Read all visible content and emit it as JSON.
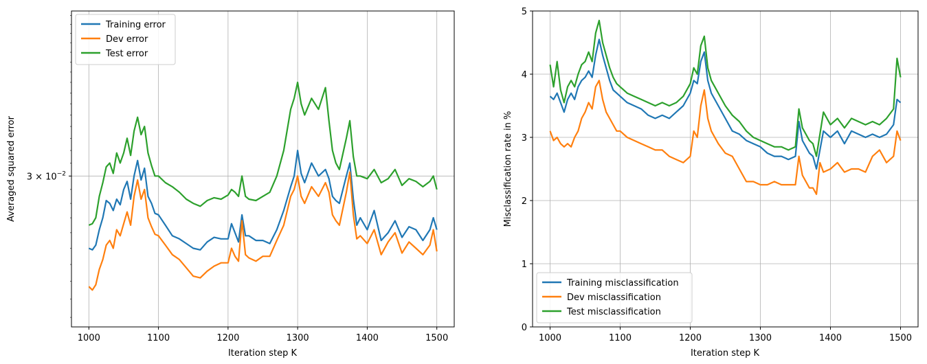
{
  "chart_data": [
    {
      "type": "line",
      "yscale": "log",
      "xlabel": "Iteration step K",
      "ylabel": "Averaged squared error",
      "xlim": [
        975,
        1525
      ],
      "ylim": [
        0.0205,
        0.0455
      ],
      "xticks": [
        1000,
        1100,
        1200,
        1300,
        1400,
        1500
      ],
      "xtick_labels": [
        "1000",
        "1100",
        "1200",
        "1300",
        "1400",
        "1500"
      ],
      "ytick_value": 0.03,
      "ytick_label_base": "3 × 10",
      "ytick_label_exp": "−2",
      "grid": true,
      "legend_position": "upper-left",
      "series": [
        {
          "name": "Training error",
          "color": "#1f77b4",
          "x": [
            1000,
            1005,
            1010,
            1015,
            1020,
            1025,
            1030,
            1035,
            1040,
            1045,
            1050,
            1055,
            1060,
            1065,
            1070,
            1075,
            1080,
            1085,
            1090,
            1095,
            1100,
            1110,
            1120,
            1130,
            1140,
            1150,
            1160,
            1170,
            1180,
            1190,
            1200,
            1205,
            1210,
            1215,
            1220,
            1225,
            1230,
            1240,
            1250,
            1260,
            1270,
            1280,
            1290,
            1295,
            1300,
            1305,
            1310,
            1320,
            1330,
            1340,
            1345,
            1350,
            1355,
            1360,
            1370,
            1375,
            1380,
            1385,
            1390,
            1400,
            1410,
            1420,
            1430,
            1440,
            1450,
            1460,
            1470,
            1480,
            1490,
            1495,
            1500
          ],
          "y": [
            0.025,
            0.0249,
            0.0252,
            0.0262,
            0.027,
            0.0282,
            0.028,
            0.0275,
            0.0283,
            0.0279,
            0.029,
            0.0296,
            0.0283,
            0.03,
            0.0312,
            0.0297,
            0.0306,
            0.0285,
            0.028,
            0.0273,
            0.0272,
            0.0265,
            0.0258,
            0.0256,
            0.0253,
            0.025,
            0.0249,
            0.0254,
            0.0257,
            0.0256,
            0.0256,
            0.0266,
            0.026,
            0.0254,
            0.0272,
            0.0258,
            0.0258,
            0.0255,
            0.0255,
            0.0253,
            0.0262,
            0.0275,
            0.0292,
            0.03,
            0.032,
            0.0302,
            0.0295,
            0.031,
            0.03,
            0.0305,
            0.0298,
            0.0285,
            0.0282,
            0.028,
            0.03,
            0.031,
            0.0283,
            0.0265,
            0.027,
            0.0262,
            0.0275,
            0.0255,
            0.026,
            0.0268,
            0.0257,
            0.0264,
            0.0262,
            0.0255,
            0.0262,
            0.027,
            0.0262
          ]
        },
        {
          "name": "Dev error",
          "color": "#ff7f0e",
          "x": [
            1000,
            1005,
            1010,
            1015,
            1020,
            1025,
            1030,
            1035,
            1040,
            1045,
            1050,
            1055,
            1060,
            1065,
            1070,
            1075,
            1080,
            1085,
            1090,
            1095,
            1100,
            1110,
            1120,
            1130,
            1140,
            1150,
            1160,
            1170,
            1180,
            1190,
            1200,
            1205,
            1210,
            1215,
            1220,
            1225,
            1230,
            1240,
            1250,
            1260,
            1270,
            1280,
            1290,
            1295,
            1300,
            1305,
            1310,
            1320,
            1330,
            1340,
            1345,
            1350,
            1355,
            1360,
            1370,
            1375,
            1380,
            1385,
            1390,
            1400,
            1410,
            1420,
            1430,
            1440,
            1450,
            1460,
            1470,
            1480,
            1490,
            1495,
            1500
          ],
          "y": [
            0.0227,
            0.0225,
            0.0228,
            0.0237,
            0.0243,
            0.0252,
            0.0255,
            0.025,
            0.0262,
            0.0258,
            0.0266,
            0.0274,
            0.0265,
            0.0285,
            0.0297,
            0.0283,
            0.029,
            0.027,
            0.0264,
            0.0259,
            0.0258,
            0.0252,
            0.0246,
            0.0243,
            0.0238,
            0.0233,
            0.0232,
            0.0236,
            0.0239,
            0.0241,
            0.0241,
            0.025,
            0.0245,
            0.0242,
            0.0268,
            0.0246,
            0.0244,
            0.0242,
            0.0245,
            0.0245,
            0.0255,
            0.0265,
            0.0285,
            0.029,
            0.03,
            0.0285,
            0.028,
            0.0292,
            0.0285,
            0.0295,
            0.0288,
            0.0272,
            0.0268,
            0.0265,
            0.0288,
            0.0303,
            0.0272,
            0.0256,
            0.0258,
            0.0253,
            0.0262,
            0.0246,
            0.0254,
            0.026,
            0.0247,
            0.0254,
            0.025,
            0.0246,
            0.0252,
            0.0262,
            0.0248
          ]
        },
        {
          "name": "Test error",
          "color": "#2ca02c",
          "x": [
            1000,
            1005,
            1010,
            1015,
            1020,
            1025,
            1030,
            1035,
            1040,
            1045,
            1050,
            1055,
            1060,
            1065,
            1070,
            1075,
            1080,
            1085,
            1090,
            1095,
            1100,
            1110,
            1120,
            1130,
            1140,
            1150,
            1160,
            1170,
            1180,
            1190,
            1200,
            1205,
            1210,
            1215,
            1220,
            1225,
            1230,
            1240,
            1250,
            1260,
            1270,
            1280,
            1290,
            1295,
            1300,
            1305,
            1310,
            1320,
            1330,
            1340,
            1345,
            1350,
            1355,
            1360,
            1370,
            1375,
            1380,
            1385,
            1390,
            1400,
            1410,
            1420,
            1430,
            1440,
            1450,
            1460,
            1470,
            1480,
            1490,
            1495,
            1500
          ],
          "y": [
            0.0265,
            0.0266,
            0.027,
            0.0285,
            0.0295,
            0.0307,
            0.031,
            0.0302,
            0.0318,
            0.031,
            0.0318,
            0.033,
            0.0316,
            0.0336,
            0.0348,
            0.0333,
            0.034,
            0.0318,
            0.0308,
            0.03,
            0.03,
            0.0295,
            0.0292,
            0.0288,
            0.0283,
            0.028,
            0.0278,
            0.0282,
            0.0284,
            0.0283,
            0.0286,
            0.029,
            0.0288,
            0.0285,
            0.03,
            0.0285,
            0.0283,
            0.0282,
            0.0285,
            0.0288,
            0.03,
            0.032,
            0.0355,
            0.0365,
            0.038,
            0.036,
            0.035,
            0.0365,
            0.0355,
            0.0375,
            0.0345,
            0.032,
            0.031,
            0.0305,
            0.033,
            0.0345,
            0.0315,
            0.03,
            0.03,
            0.0298,
            0.0305,
            0.0295,
            0.0298,
            0.0305,
            0.0293,
            0.0298,
            0.0296,
            0.0292,
            0.0296,
            0.03,
            0.029
          ]
        }
      ]
    },
    {
      "type": "line",
      "xlabel": "Iteration step K",
      "ylabel": "Misclassification rate in %",
      "xlim": [
        975,
        1525
      ],
      "ylim": [
        0,
        5
      ],
      "xticks": [
        1000,
        1100,
        1200,
        1300,
        1400,
        1500
      ],
      "xtick_labels": [
        "1000",
        "1100",
        "1200",
        "1300",
        "1400",
        "1500"
      ],
      "yticks": [
        0,
        1,
        2,
        3,
        4,
        5
      ],
      "ytick_labels": [
        "0",
        "1",
        "2",
        "3",
        "4",
        "5"
      ],
      "grid": true,
      "legend_position": "lower-left",
      "series": [
        {
          "name": "Training misclassification",
          "color": "#1f77b4",
          "x": [
            1000,
            1005,
            1010,
            1015,
            1020,
            1025,
            1030,
            1035,
            1040,
            1045,
            1050,
            1055,
            1060,
            1065,
            1070,
            1075,
            1080,
            1085,
            1090,
            1095,
            1100,
            1110,
            1120,
            1130,
            1140,
            1150,
            1160,
            1170,
            1180,
            1190,
            1200,
            1205,
            1210,
            1215,
            1220,
            1225,
            1230,
            1240,
            1250,
            1260,
            1270,
            1280,
            1290,
            1300,
            1310,
            1320,
            1330,
            1340,
            1350,
            1355,
            1360,
            1370,
            1375,
            1380,
            1385,
            1390,
            1400,
            1410,
            1420,
            1430,
            1440,
            1450,
            1460,
            1470,
            1480,
            1490,
            1495,
            1500
          ],
          "y": [
            3.65,
            3.6,
            3.7,
            3.55,
            3.4,
            3.6,
            3.7,
            3.6,
            3.8,
            3.9,
            3.95,
            4.05,
            3.95,
            4.3,
            4.55,
            4.3,
            4.1,
            3.9,
            3.75,
            3.7,
            3.65,
            3.55,
            3.5,
            3.45,
            3.35,
            3.3,
            3.35,
            3.3,
            3.4,
            3.5,
            3.7,
            3.9,
            3.85,
            4.2,
            4.35,
            3.9,
            3.7,
            3.5,
            3.3,
            3.1,
            3.05,
            2.95,
            2.9,
            2.85,
            2.75,
            2.7,
            2.7,
            2.65,
            2.7,
            3.25,
            2.95,
            2.75,
            2.7,
            2.5,
            2.8,
            3.1,
            3.0,
            3.1,
            2.9,
            3.1,
            3.05,
            3.0,
            3.05,
            3.0,
            3.05,
            3.2,
            3.6,
            3.55
          ]
        },
        {
          "name": "Dev misclassification",
          "color": "#ff7f0e",
          "x": [
            1000,
            1005,
            1010,
            1015,
            1020,
            1025,
            1030,
            1035,
            1040,
            1045,
            1050,
            1055,
            1060,
            1065,
            1070,
            1075,
            1080,
            1085,
            1090,
            1095,
            1100,
            1110,
            1120,
            1130,
            1140,
            1150,
            1160,
            1170,
            1180,
            1190,
            1200,
            1205,
            1210,
            1215,
            1220,
            1225,
            1230,
            1240,
            1250,
            1260,
            1270,
            1280,
            1290,
            1300,
            1310,
            1320,
            1330,
            1340,
            1350,
            1355,
            1360,
            1370,
            1375,
            1380,
            1385,
            1390,
            1400,
            1410,
            1420,
            1430,
            1440,
            1450,
            1460,
            1470,
            1480,
            1490,
            1495,
            1500
          ],
          "y": [
            3.1,
            2.95,
            3.0,
            2.9,
            2.85,
            2.9,
            2.85,
            3.0,
            3.1,
            3.3,
            3.4,
            3.55,
            3.45,
            3.8,
            3.9,
            3.6,
            3.4,
            3.3,
            3.2,
            3.1,
            3.1,
            3.0,
            2.95,
            2.9,
            2.85,
            2.8,
            2.8,
            2.7,
            2.65,
            2.6,
            2.7,
            3.1,
            3.0,
            3.5,
            3.75,
            3.3,
            3.1,
            2.9,
            2.75,
            2.7,
            2.5,
            2.3,
            2.3,
            2.25,
            2.25,
            2.3,
            2.25,
            2.25,
            2.25,
            2.7,
            2.4,
            2.2,
            2.2,
            2.1,
            2.6,
            2.45,
            2.5,
            2.6,
            2.45,
            2.5,
            2.5,
            2.45,
            2.7,
            2.8,
            2.6,
            2.7,
            3.1,
            2.95
          ]
        },
        {
          "name": "Test misclassification",
          "color": "#2ca02c",
          "x": [
            1000,
            1005,
            1010,
            1015,
            1020,
            1025,
            1030,
            1035,
            1040,
            1045,
            1050,
            1055,
            1060,
            1065,
            1070,
            1075,
            1080,
            1085,
            1090,
            1095,
            1100,
            1110,
            1120,
            1130,
            1140,
            1150,
            1160,
            1170,
            1180,
            1190,
            1200,
            1205,
            1210,
            1215,
            1220,
            1225,
            1230,
            1240,
            1250,
            1260,
            1270,
            1280,
            1290,
            1300,
            1310,
            1320,
            1330,
            1340,
            1350,
            1355,
            1360,
            1370,
            1375,
            1380,
            1385,
            1390,
            1400,
            1410,
            1420,
            1430,
            1440,
            1450,
            1460,
            1470,
            1480,
            1490,
            1495,
            1500
          ],
          "y": [
            4.15,
            3.8,
            4.2,
            3.75,
            3.55,
            3.8,
            3.9,
            3.8,
            4.0,
            4.15,
            4.2,
            4.35,
            4.2,
            4.65,
            4.85,
            4.5,
            4.3,
            4.1,
            3.95,
            3.85,
            3.8,
            3.7,
            3.65,
            3.6,
            3.55,
            3.5,
            3.55,
            3.5,
            3.55,
            3.65,
            3.85,
            4.1,
            4.0,
            4.45,
            4.6,
            4.1,
            3.9,
            3.7,
            3.5,
            3.35,
            3.25,
            3.1,
            3.0,
            2.95,
            2.9,
            2.85,
            2.85,
            2.8,
            2.85,
            3.45,
            3.15,
            2.95,
            2.9,
            2.7,
            3.05,
            3.4,
            3.2,
            3.3,
            3.15,
            3.3,
            3.25,
            3.2,
            3.25,
            3.2,
            3.3,
            3.45,
            4.25,
            3.95
          ]
        }
      ]
    }
  ]
}
